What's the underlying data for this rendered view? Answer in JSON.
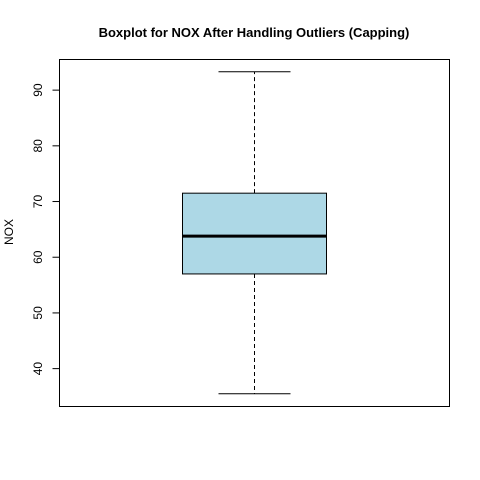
{
  "chart_data": {
    "type": "boxplot",
    "title": "Boxplot for NOX After Handling Outliers (Capping)",
    "xlabel": "",
    "ylabel": "NOX",
    "ylim": [
      33.2,
      95.5
    ],
    "yticks": [
      40,
      50,
      60,
      70,
      80,
      90
    ],
    "grid": false,
    "box": {
      "min": 35.5,
      "q1": 57.0,
      "median": 63.8,
      "q3": 71.5,
      "max": 93.3
    },
    "colors": {
      "box_fill": "#add8e6",
      "stroke": "#000000"
    }
  }
}
